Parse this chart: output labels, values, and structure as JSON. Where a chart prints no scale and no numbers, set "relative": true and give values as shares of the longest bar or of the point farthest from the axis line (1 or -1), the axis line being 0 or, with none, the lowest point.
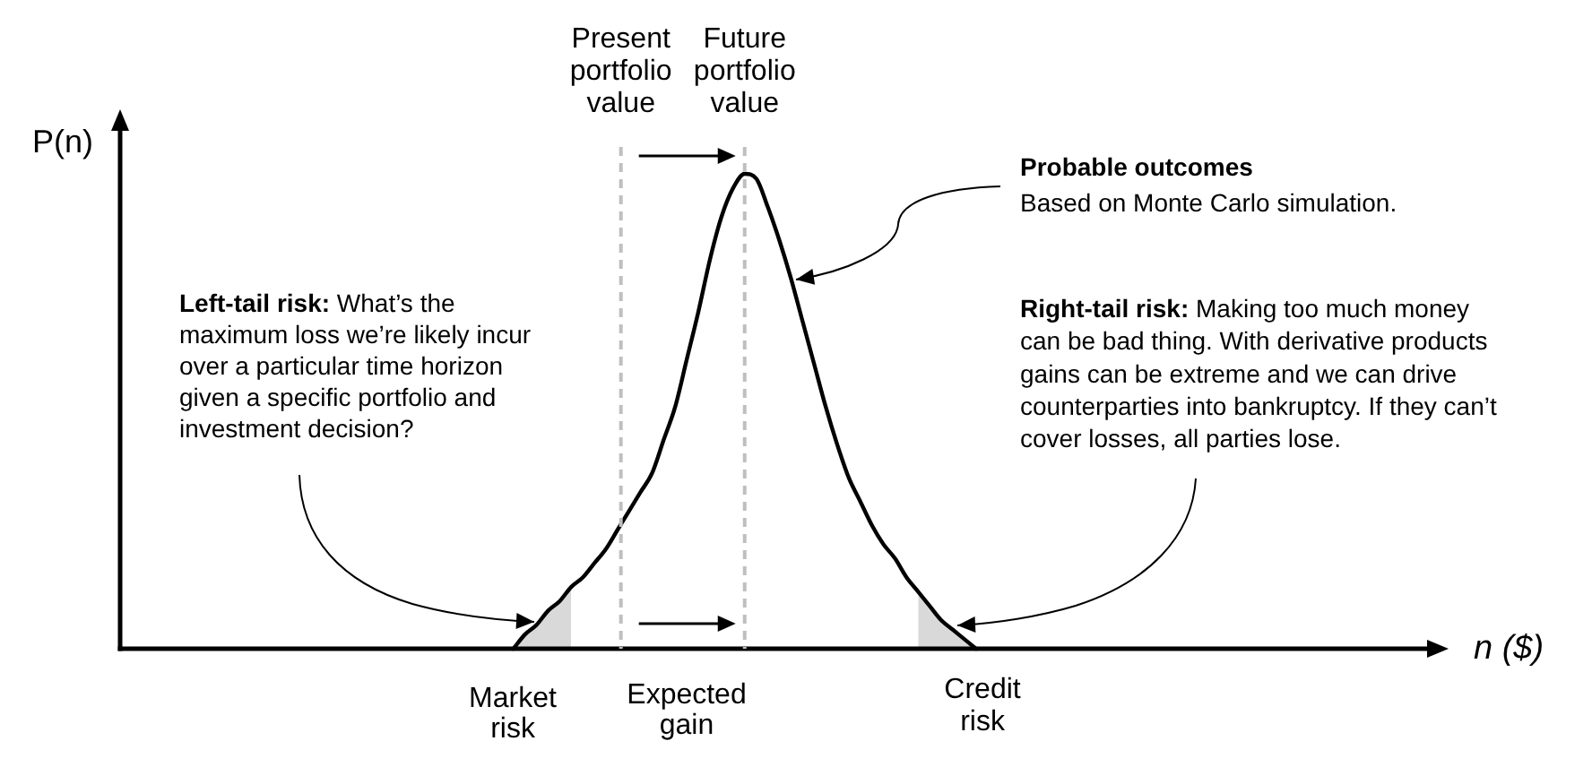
{
  "chart_data": {
    "type": "line",
    "relative": true,
    "xlabel": "n ($)",
    "ylabel": "P(n)",
    "categories": [
      null,
      null,
      null,
      null,
      null,
      null,
      null,
      null,
      null,
      null,
      null,
      null,
      null,
      null,
      null,
      null,
      null,
      null,
      null,
      null,
      null,
      null,
      null,
      null,
      null,
      null,
      null,
      null,
      null,
      null,
      null,
      null,
      null,
      null,
      null,
      null,
      null,
      null,
      null,
      null,
      null,
      null,
      null,
      null,
      null,
      null,
      null,
      null,
      null,
      null,
      null,
      null,
      null,
      null,
      null,
      null,
      null,
      null,
      null,
      null,
      null,
      null,
      null,
      null,
      null,
      null,
      null,
      null,
      null,
      null,
      null,
      null,
      null,
      null,
      null,
      null,
      null,
      null,
      null,
      null,
      null,
      null,
      null,
      null,
      null,
      null,
      null,
      null,
      null,
      null,
      null,
      null,
      null,
      null,
      null,
      null,
      null,
      null,
      null,
      null,
      null,
      null,
      null,
      null,
      null,
      null,
      null,
      null,
      null,
      null,
      null,
      null,
      null,
      null
    ],
    "series": [
      {
        "color": "#000000",
        "values": [
          null,
          null,
          null,
          null,
          null,
          null,
          null,
          null,
          null,
          null,
          null,
          null,
          null,
          null,
          null,
          null,
          null,
          null,
          null,
          null,
          null,
          null,
          null,
          null,
          null,
          null,
          null,
          null,
          null,
          null,
          null,
          null,
          null,
          null,
          0,
          0.03,
          0.05,
          0.08,
          0.1,
          0.13,
          0.15,
          0.18,
          0.21,
          0.25,
          0.29,
          0.33,
          0.37,
          0.44,
          0.51,
          0.61,
          0.71,
          0.82,
          0.91,
          0.97,
          1,
          0.99,
          0.93,
          0.86,
          0.78,
          0.69,
          0.6,
          0.51,
          0.43,
          0.36,
          0.31,
          0.26,
          0.22,
          0.19,
          0.15,
          0.12,
          0.09,
          0.06,
          0.04,
          0.02,
          0,
          null,
          null,
          null,
          null,
          null,
          null,
          null,
          null,
          null,
          null,
          null,
          null,
          null,
          null,
          null,
          null,
          null,
          null,
          null,
          null,
          null,
          null,
          null,
          null,
          null,
          null,
          null,
          null,
          null,
          null,
          null,
          null,
          null,
          null,
          null,
          null,
          null,
          null,
          null
        ]
      },
      {
        "type": "area",
        "color": "#d9d9d9",
        "values": [
          null,
          null,
          null,
          null,
          null,
          null,
          null,
          null,
          null,
          null,
          null,
          null,
          null,
          null,
          null,
          null,
          null,
          null,
          null,
          null,
          null,
          null,
          null,
          null,
          null,
          null,
          null,
          null,
          null,
          null,
          null,
          null,
          null,
          null,
          0,
          0.03,
          0.05,
          0.08,
          0.1,
          0.13,
          null,
          null,
          null,
          null,
          null,
          null,
          null,
          null,
          null,
          null,
          null,
          null,
          null,
          null,
          null,
          null,
          null,
          null,
          null,
          null,
          null,
          null,
          null,
          null,
          null,
          null,
          null,
          null,
          null,
          null,
          null,
          null,
          null,
          null,
          null,
          null,
          null,
          null,
          null,
          null,
          null,
          null,
          null,
          null,
          null,
          null,
          null,
          null,
          null,
          null,
          null,
          null,
          null,
          null,
          null,
          null,
          null,
          null,
          null,
          null,
          null,
          null,
          null,
          null,
          null,
          null,
          null,
          null,
          null,
          null,
          null,
          null,
          null,
          null
        ]
      },
      {
        "type": "area",
        "color": "#d9d9d9",
        "values": [
          null,
          null,
          null,
          null,
          null,
          null,
          null,
          null,
          null,
          null,
          null,
          null,
          null,
          null,
          null,
          null,
          null,
          null,
          null,
          null,
          null,
          null,
          null,
          null,
          null,
          null,
          null,
          null,
          null,
          null,
          null,
          null,
          null,
          null,
          null,
          null,
          null,
          null,
          null,
          null,
          null,
          null,
          null,
          null,
          null,
          null,
          null,
          null,
          null,
          null,
          null,
          null,
          null,
          null,
          null,
          null,
          null,
          null,
          null,
          null,
          null,
          null,
          null,
          null,
          null,
          null,
          null,
          null,
          null,
          0.12,
          0.09,
          0.06,
          0.04,
          0.02,
          0,
          null,
          null,
          null,
          null,
          null,
          null,
          null,
          null,
          null,
          null,
          null,
          null,
          null,
          null,
          null,
          null,
          null,
          null,
          null,
          null,
          null,
          null,
          null,
          null,
          null,
          null,
          null,
          null,
          null,
          null,
          null,
          null,
          null,
          null,
          null,
          null,
          null,
          null,
          null
        ]
      }
    ],
    "annotations": [
      "Present portfolio value",
      "Future portfolio value",
      "Probable outcomes",
      "Based on Monte Carlo simulation.",
      "Left-tail risk:",
      "What’s the maximum loss we’re likely incur over a particular time horizon given a specific portfolio and investment decision?",
      "Right-tail risk:",
      "Making too much money can be bad thing. With derivative products gains can be extreme and we can drive counterparties into bankruptcy. If they can’t cover losses, all parties lose.",
      "Market risk",
      "Expected gain",
      "Credit risk"
    ]
  }
}
